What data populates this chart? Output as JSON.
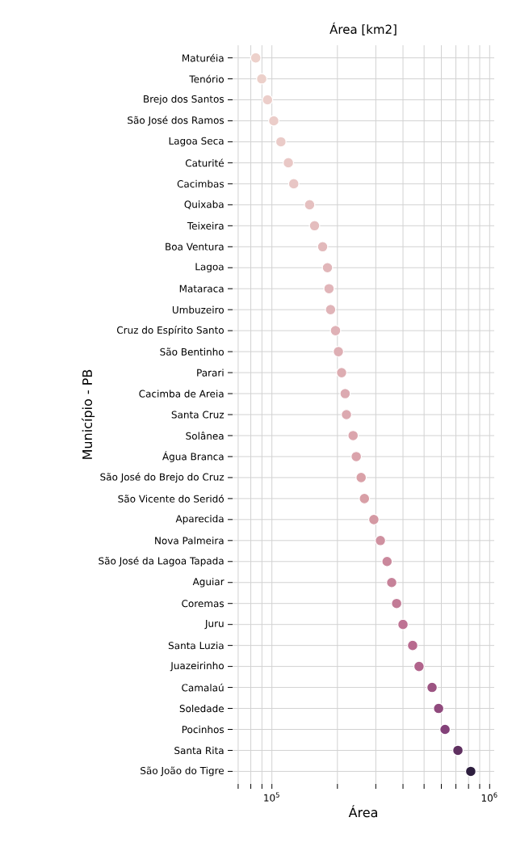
{
  "chart_data": {
    "type": "scatter",
    "title": "Área [km2]",
    "xlabel": "Área",
    "ylabel": "Município - PB",
    "categories": [
      "Maturéia",
      "Tenório",
      "Brejo dos Santos",
      "São José dos Ramos",
      "Lagoa Seca",
      "Caturité",
      "Cacimbas",
      "Quixaba",
      "Teixeira",
      "Boa Ventura",
      "Lagoa",
      "Mataraca",
      "Umbuzeiro",
      "Cruz do Espírito Santo",
      "São Bentinho",
      "Parari",
      "Cacimba de Areia",
      "Santa Cruz",
      "Solânea",
      "Água Branca",
      "São José do Brejo do Cruz",
      "São Vicente do Seridó",
      "Aparecida",
      "Nova Palmeira",
      "São José da Lagoa Tapada",
      "Aguiar",
      "Coremas",
      "Juru",
      "Santa Luzia",
      "Juazeirinho",
      "Camalaú",
      "Soledade",
      "Pocinhos",
      "Santa Rita",
      "São João do Tigre"
    ],
    "values": [
      84300,
      89800,
      95500,
      102000,
      110000,
      119000,
      126000,
      149000,
      157000,
      171000,
      180000,
      183000,
      186000,
      196000,
      202000,
      209000,
      217000,
      220000,
      236000,
      244000,
      257000,
      266000,
      294000,
      315000,
      338000,
      355000,
      374000,
      400000,
      443000,
      474000,
      544000,
      583000,
      624000,
      715000,
      819000
    ],
    "colors": [
      "#edd1cb",
      "#ecd0ca",
      "#ecceca",
      "#ebcdc9",
      "#eacbc8",
      "#e9c8c6",
      "#e8c6c5",
      "#e5c0c0",
      "#e4bdbe",
      "#e2b9bb",
      "#e1b6b9",
      "#e1b5b9",
      "#e0b4b8",
      "#dfb1b6",
      "#deafb4",
      "#ddadb2",
      "#dcaab1",
      "#dca9b0",
      "#dba5ad",
      "#daa3ab",
      "#d9a1a8",
      "#d89fa6",
      "#d499a3",
      "#cf91a0",
      "#ca889c",
      "#c68299",
      "#c27b96",
      "#be7293",
      "#b86a8f",
      "#b1648c",
      "#9c5482",
      "#904a7d",
      "#834179",
      "#5f3060",
      "#2d1e3e"
    ],
    "orientation": "horizontal",
    "xlim": [
      66000,
      1050000
    ],
    "xticks": [
      {
        "value": 70000,
        "label": null
      },
      {
        "value": 80000,
        "label": null
      },
      {
        "value": 90000,
        "label": null
      },
      {
        "value": 100000,
        "label": "10$^{5}$"
      },
      {
        "value": 200000,
        "label": null
      },
      {
        "value": 300000,
        "label": null
      },
      {
        "value": 400000,
        "label": null
      },
      {
        "value": 500000,
        "label": null
      },
      {
        "value": 600000,
        "label": null
      },
      {
        "value": 700000,
        "label": null
      },
      {
        "value": 800000,
        "label": null
      },
      {
        "value": 900000,
        "label": null
      },
      {
        "value": 1000000,
        "label": "10$^{6}$"
      }
    ],
    "log": "x",
    "grid": true,
    "marker": "circle"
  }
}
